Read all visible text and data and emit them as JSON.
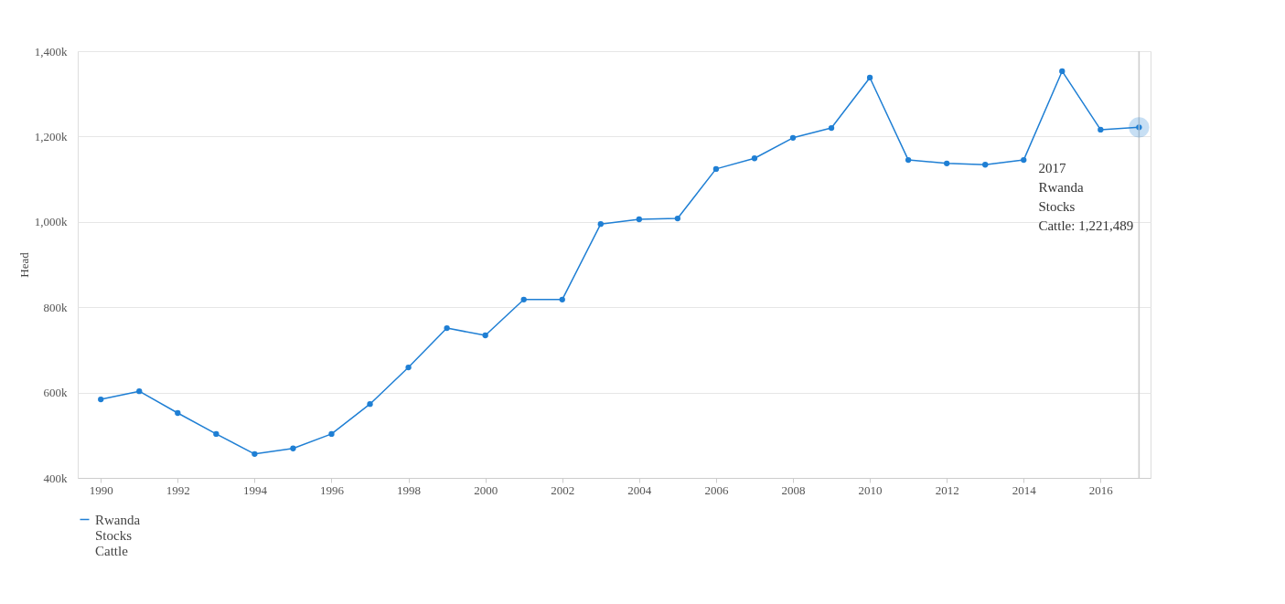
{
  "chart_data": {
    "type": "line",
    "ylabel": "Head",
    "x": [
      1990,
      1991,
      1992,
      1993,
      1994,
      1995,
      1996,
      1997,
      1998,
      1999,
      2000,
      2001,
      2002,
      2003,
      2004,
      2005,
      2006,
      2007,
      2008,
      2009,
      2010,
      2011,
      2012,
      2013,
      2014,
      2015,
      2016,
      2017
    ],
    "series": [
      {
        "name": "Rwanda Stocks Cattle",
        "color": "#1f7fd4",
        "values": [
          584,
          603,
          552,
          503,
          456,
          469,
          503,
          573,
          659,
          751,
          734,
          818,
          818,
          995,
          1006,
          1008,
          1124,
          1149,
          1197,
          1220,
          1338,
          1145,
          1137,
          1134,
          1145,
          1353,
          1216,
          1221.489
        ]
      }
    ],
    "xlim": [
      1989.4,
      2017.3
    ],
    "xticks": [
      1990,
      1992,
      1994,
      1996,
      1998,
      2000,
      2002,
      2004,
      2006,
      2008,
      2010,
      2012,
      2014,
      2016
    ],
    "ylim": [
      400,
      1400
    ],
    "yticks": [
      {
        "value": 400,
        "label": "400k"
      },
      {
        "value": 600,
        "label": "600k"
      },
      {
        "value": 800,
        "label": "800k"
      },
      {
        "value": 1000,
        "label": "1,000k"
      },
      {
        "value": 1200,
        "label": "1,200k"
      },
      {
        "value": 1400,
        "label": "1,400k"
      }
    ],
    "ref_lines": [
      {
        "axis": "x",
        "value": 2017,
        "color": "#cccccc"
      }
    ],
    "annotations": [
      {
        "text": "2017\nRwanda\nStocks\nCattle: 1,221,489",
        "x": 2017,
        "y": 1221.489
      }
    ],
    "grid": "y",
    "legend": "bottom",
    "marker": "circle",
    "line_style": "solid"
  }
}
